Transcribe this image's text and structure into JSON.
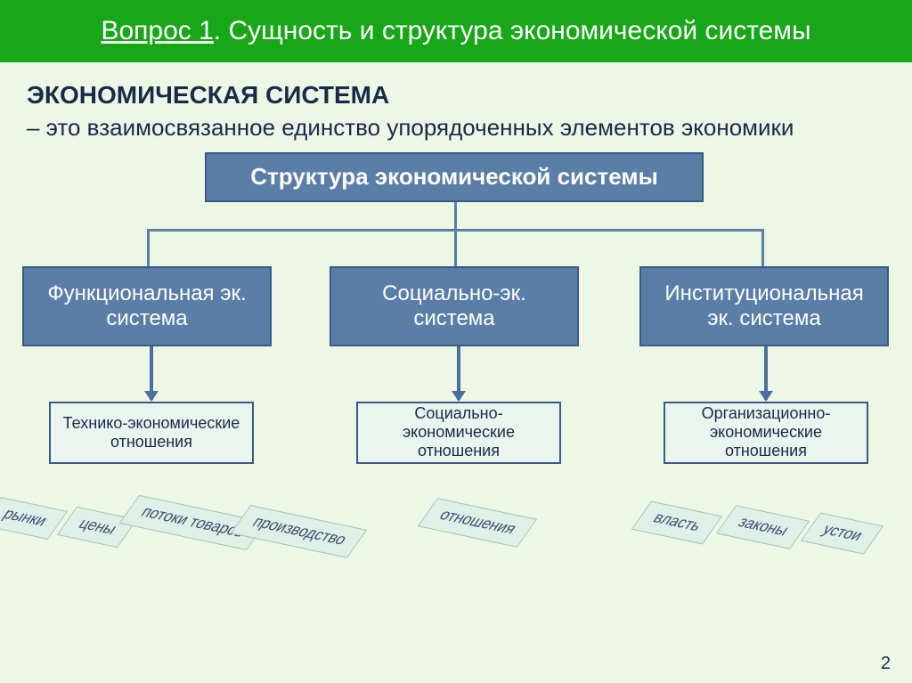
{
  "colors": {
    "header_bg": "#18a718",
    "header_text": "#ffffff",
    "page_bg": "#edf7e6",
    "body_text": "#1a2a4a",
    "box_bg_dark": "#5b7ea8",
    "box_bg_leaf": "#e9f5ee",
    "box_border": "#3a5a85",
    "box_text_light": "#ffffff",
    "box_text_dark": "#1a2a4a",
    "connector": "#5b7ea8",
    "arrow": "#4a6fa0",
    "tag_bg": "#dff0e8",
    "tag_border": "#a8c8b8",
    "tag_text": "#3a5070"
  },
  "header": {
    "question": "Вопрос 1",
    "title": ". Сущность и структура экономической системы"
  },
  "body": {
    "term": "ЭКОНОМИЧЕСКАЯ СИСТЕМА",
    "definition": "– это взаимосвязанное единство упорядоченных элементов экономики"
  },
  "diagram": {
    "root": "Структура экономической системы",
    "children": [
      {
        "label": "Функциональная эк. система"
      },
      {
        "label": "Социально-эк. система"
      },
      {
        "label": "Институциональная эк. система"
      }
    ],
    "leaves": [
      {
        "label": "Технико-экономические отношения"
      },
      {
        "label": "Социально-экономические отношения"
      },
      {
        "label": "Организационно-экономические отношения"
      }
    ],
    "tags_left": [
      "рынки",
      "цены",
      "потоки товаров",
      "производство"
    ],
    "tags_center": [
      "отношения"
    ],
    "tags_right": [
      "власть",
      "законы",
      "устои"
    ]
  },
  "page_number": "2"
}
